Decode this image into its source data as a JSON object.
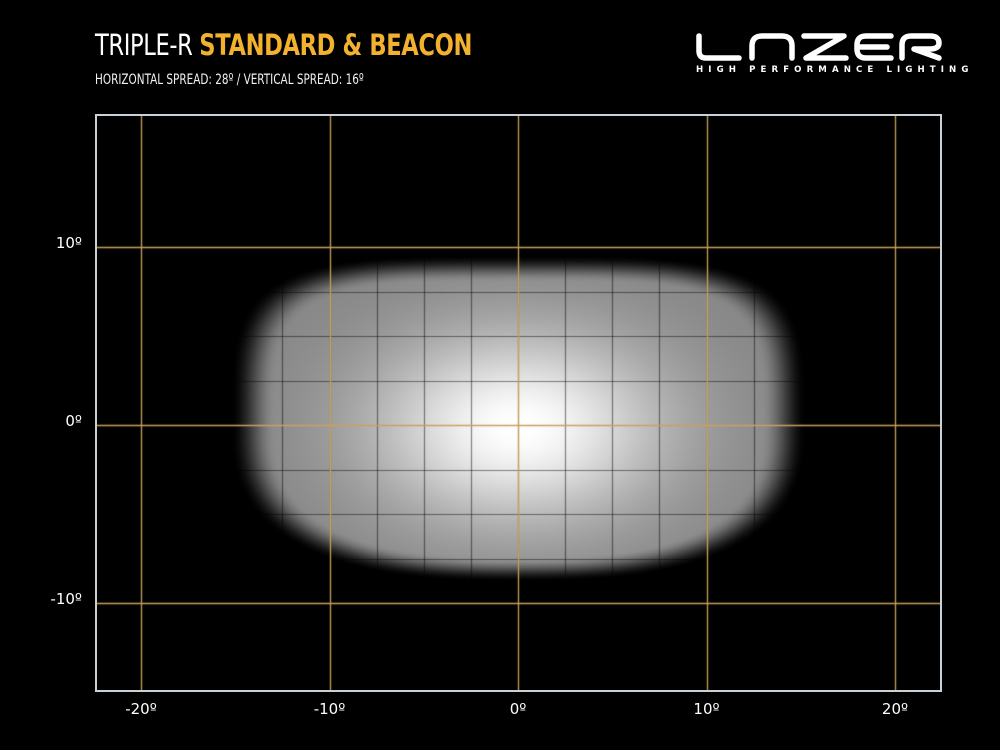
{
  "header": {
    "title_prefix": "TRIPLE-R",
    "title_accent": "STANDARD & BEACON",
    "subtitle": "HORIZONTAL SPREAD: 28º  /  VERTICAL SPREAD:  16º"
  },
  "logo": {
    "wordmark": "LAZER",
    "tagline": "HIGH PERFORMANCE LIGHTING"
  },
  "colors": {
    "background": "#000000",
    "accent": "#f2b12e",
    "gridline": "#c8a25a",
    "frame": "#c9d0d6",
    "beam": "#ffffff"
  },
  "chart_data": {
    "type": "heatmap",
    "title": "TRIPLE-R STANDARD & BEACON",
    "subtitle": "HORIZONTAL SPREAD: 28º / VERTICAL SPREAD: 16º",
    "description": "Beam pattern isolux plot: brightest at center (0º,0º), fading toward edges",
    "xlabel": "",
    "ylabel": "",
    "x_ticks": [
      -20,
      -10,
      0,
      10,
      20
    ],
    "x_tick_labels": [
      "-20º",
      "-10º",
      "0º",
      "10º",
      "20º"
    ],
    "y_ticks": [
      10,
      0,
      -10
    ],
    "y_tick_labels": [
      "10º",
      "0º",
      "-10º"
    ],
    "xlim": [
      -22.5,
      22.5
    ],
    "ylim": [
      -15,
      17.5
    ],
    "grid": true,
    "horizontal_spread_deg": 28,
    "vertical_spread_deg": 16,
    "beam": {
      "center": [
        0,
        0
      ],
      "extent_x": [
        -15,
        15
      ],
      "extent_y": [
        -8.5,
        9.5
      ],
      "peak_intensity": 1.0
    }
  }
}
